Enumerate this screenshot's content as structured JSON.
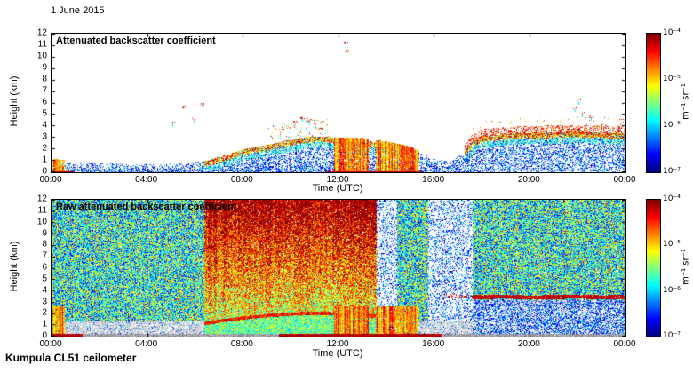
{
  "figure": {
    "date_label": "1 June 2015",
    "footer": "Kumpula CL51 ceilometer"
  },
  "chart_data": [
    {
      "type": "heatmap",
      "title": "Attenuated backscatter coefficient",
      "xlabel": "Time (UTC)",
      "ylabel": "Height (km)",
      "x_ticks": [
        "00:00",
        "04:00",
        "08:00",
        "12:00",
        "16:00",
        "20:00",
        "00:00"
      ],
      "x_range_hours": [
        0,
        24
      ],
      "y_ticks": [
        0,
        1,
        2,
        3,
        4,
        5,
        6,
        7,
        8,
        9,
        10,
        11,
        12
      ],
      "ylim_km": [
        0,
        12
      ],
      "grid": false,
      "colorbar": {
        "unit_label": "m⁻¹ sr⁻¹",
        "tick_labels": [
          "10⁻⁴",
          "10⁻⁵",
          "10⁻⁶",
          "10⁻⁷"
        ],
        "log10_range": [
          -7,
          -4
        ],
        "colormap": "jet"
      },
      "render_style": "processed",
      "features": {
        "boundary_layer_top_km": {
          "hours": [
            0,
            1,
            2,
            3,
            4,
            5,
            6,
            6.5,
            7,
            7.5,
            8,
            8.5,
            9,
            9.5,
            10,
            10.5,
            11,
            11.5,
            12,
            12.5,
            13,
            13.5,
            14,
            14.5,
            15,
            15.5,
            16,
            16.7,
            17.2,
            17.6,
            18,
            19,
            20,
            21,
            22,
            23,
            24
          ],
          "km": [
            0.9,
            0.85,
            0.75,
            0.7,
            0.65,
            0.7,
            0.85,
            1.0,
            1.3,
            1.6,
            1.95,
            2.15,
            2.35,
            2.55,
            2.8,
            3.0,
            3.1,
            3.05,
            2.95,
            2.85,
            2.75,
            2.6,
            2.45,
            2.25,
            2.0,
            1.6,
            1.1,
            0.9,
            1.6,
            2.6,
            3.1,
            3.3,
            3.4,
            3.45,
            3.5,
            3.45,
            3.35
          ]
        },
        "strong_edge_periods": [
          [
            6.3,
            15.4
          ],
          [
            17.3,
            24
          ]
        ],
        "precip_periods": [
          [
            0,
            0.55
          ],
          [
            11.8,
            13.25
          ],
          [
            13.55,
            15.35
          ]
        ],
        "ground_red_periods": [
          [
            0,
            0.9
          ],
          [
            11.5,
            15.5
          ]
        ],
        "plume_period": [
          9.0,
          11.6
        ],
        "evening_start": 17.3,
        "cloud_dots": [
          [
            5.05,
            4.35
          ],
          [
            5.5,
            5.65
          ],
          [
            5.95,
            4.55
          ],
          [
            6.3,
            5.9
          ],
          [
            9.9,
            3.9
          ],
          [
            10.2,
            4.35
          ],
          [
            10.5,
            4.7
          ],
          [
            10.8,
            4.5
          ],
          [
            11.05,
            4.1
          ],
          [
            11.25,
            3.8
          ],
          [
            12.3,
            11.2
          ],
          [
            12.35,
            10.5
          ],
          [
            21.9,
            5.6
          ],
          [
            22.05,
            6.3
          ],
          [
            22.2,
            5.1
          ],
          [
            22.6,
            4.8
          ]
        ]
      }
    },
    {
      "type": "heatmap",
      "title": "Raw attenuated backscatter coefficient",
      "xlabel": "Time (UTC)",
      "ylabel": "Height (km)",
      "x_ticks": [
        "00:00",
        "04:00",
        "08:00",
        "12:00",
        "16:00",
        "20:00",
        "00:00"
      ],
      "x_range_hours": [
        0,
        24
      ],
      "y_ticks": [
        0,
        1,
        2,
        3,
        4,
        5,
        6,
        7,
        8,
        9,
        10,
        11,
        12
      ],
      "ylim_km": [
        0,
        12
      ],
      "grid": false,
      "colorbar": {
        "unit_label": "m⁻¹ sr⁻¹",
        "tick_labels": [
          "10⁻⁴",
          "10⁻⁵",
          "10⁻⁶",
          "10⁻⁷"
        ],
        "log10_range": [
          -7,
          -4
        ],
        "colormap": "jet"
      },
      "render_style": "raw",
      "features": {
        "day_high_period": [
          6.4,
          13.6
        ],
        "white_bands": [
          [
            13.6,
            14.45
          ],
          [
            15.75,
            17.6
          ]
        ],
        "bl_line": {
          "hours": [
            6.4,
            7,
            8,
            9,
            10,
            11,
            12,
            13,
            13.6
          ],
          "km": [
            1.1,
            1.3,
            1.6,
            1.8,
            1.95,
            2.0,
            1.95,
            1.85,
            1.75
          ]
        },
        "cloud_line": {
          "hours": [
            16.4,
            17,
            18,
            19,
            20,
            21,
            22,
            23,
            24
          ],
          "km": [
            3.6,
            3.5,
            3.45,
            3.5,
            3.4,
            3.45,
            3.5,
            3.42,
            3.45
          ]
        },
        "precip_periods": [
          [
            0,
            0.55
          ],
          [
            11.8,
            13.25
          ],
          [
            13.55,
            15.35
          ]
        ],
        "bottom_red_periods": [
          [
            0,
            1.3
          ],
          [
            9.5,
            16.3
          ]
        ],
        "evening_pale_start": 17.6,
        "high_dots": [
          [
            21.9,
            5.6
          ],
          [
            22.05,
            6.3
          ],
          [
            22.2,
            5.15
          ]
        ]
      }
    }
  ]
}
